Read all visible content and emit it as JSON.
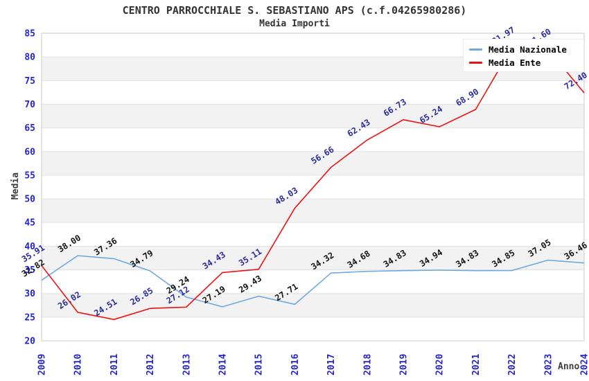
{
  "chart_data": {
    "type": "line",
    "title": "CENTRO PARROCCHIALE S. SEBASTIANO APS (c.f.04265980286)",
    "subtitle": "Media Importi",
    "xlabel": "Anno",
    "ylabel": "Media",
    "ylim": [
      20,
      85
    ],
    "y_ticks": [
      20,
      25,
      30,
      35,
      40,
      45,
      50,
      55,
      60,
      65,
      70,
      75,
      80,
      85
    ],
    "categories": [
      "2009",
      "2010",
      "2011",
      "2012",
      "2013",
      "2014",
      "2015",
      "2016",
      "2017",
      "2018",
      "2019",
      "2020",
      "2021",
      "2022",
      "2023",
      "2024"
    ],
    "series": [
      {
        "name": "Media Nazionale",
        "line_color": "#6fa8dc",
        "label_color": "#111111",
        "values": [
          32.82,
          38.0,
          37.36,
          34.79,
          29.24,
          27.19,
          29.43,
          27.71,
          34.32,
          34.68,
          34.83,
          34.94,
          34.83,
          34.85,
          37.05,
          36.46
        ]
      },
      {
        "name": "Media Ente",
        "line_color": "#ee1111",
        "label_color": "#2b2b9e",
        "values": [
          35.91,
          26.02,
          24.51,
          26.85,
          27.12,
          34.43,
          35.11,
          48.03,
          56.66,
          62.43,
          66.73,
          65.24,
          68.9,
          81.97,
          81.6,
          72.4
        ]
      }
    ],
    "legend_position": "top-right",
    "grid": "horizontal gridlines every 5 units with alternating gray bands",
    "styles": {
      "tick_color": "#2323cf",
      "band_color": "#f2f2f2",
      "grid_color": "#e3e3e3",
      "frame_color": "#c9c9c9"
    }
  }
}
